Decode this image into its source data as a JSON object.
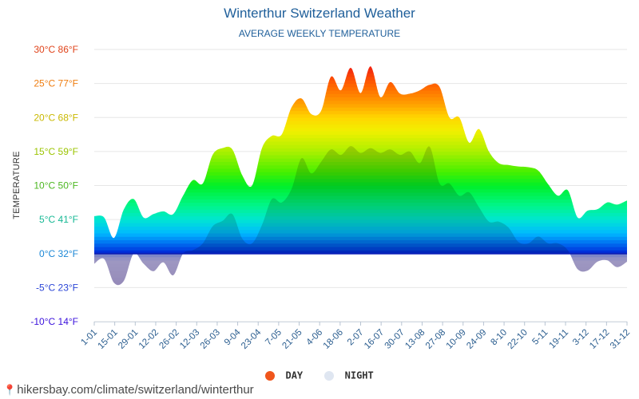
{
  "chart_data": {
    "type": "area",
    "title": "Winterthur Switzerland Weather",
    "subtitle": "AVERAGE WEEKLY TEMPERATURE",
    "ylabel": "TEMPERATURE",
    "ylim": [
      -10,
      30
    ],
    "y_ticks": [
      {
        "value": 30,
        "label": "30°C 86°F",
        "color": "#e0431a"
      },
      {
        "value": 25,
        "label": "25°C 77°F",
        "color": "#ef7d10"
      },
      {
        "value": 20,
        "label": "20°C 68°F",
        "color": "#c9b800"
      },
      {
        "value": 15,
        "label": "15°C 59°F",
        "color": "#9bc400"
      },
      {
        "value": 10,
        "label": "10°C 50°F",
        "color": "#4cb720"
      },
      {
        "value": 5,
        "label": "5°C 41°F",
        "color": "#16b894"
      },
      {
        "value": 0,
        "label": "0°C 32°F",
        "color": "#1b87d6"
      },
      {
        "value": -5,
        "label": "-5°C 23°F",
        "color": "#2a45d6"
      },
      {
        "value": -10,
        "label": "-10°C 14°F",
        "color": "#3a10dc"
      }
    ],
    "x_tick_labels": [
      "1-01",
      "15-01",
      "29-01",
      "12-02",
      "26-02",
      "12-03",
      "26-03",
      "9-04",
      "23-04",
      "7-05",
      "21-05",
      "4-06",
      "18-06",
      "2-07",
      "16-07",
      "30-07",
      "13-08",
      "27-08",
      "10-09",
      "24-09",
      "8-10",
      "22-10",
      "5-11",
      "19-11",
      "3-12",
      "17-12",
      "31-12"
    ],
    "series": [
      {
        "name": "DAY",
        "values": [
          5.5,
          5.3,
          2.3,
          6.5,
          8,
          5.3,
          5.8,
          6.2,
          5.8,
          8.5,
          10.8,
          10.3,
          14.5,
          15.5,
          15.3,
          11.5,
          10,
          15.5,
          17.3,
          17.5,
          21.5,
          22.8,
          20.5,
          21,
          26,
          24,
          27.3,
          23.6,
          27.5,
          23,
          25.2,
          23.5,
          23.5,
          24,
          24.8,
          24.5,
          20,
          20,
          16.3,
          18.3,
          15,
          13.3,
          13,
          12.8,
          12.7,
          12.2,
          10.2,
          8.5,
          9.3,
          5.3,
          6.3,
          6.5,
          7.5,
          7.2,
          7.8
        ]
      },
      {
        "name": "NIGHT",
        "values": [
          -1.5,
          -0.8,
          -4.3,
          -4,
          0,
          -1.5,
          -2.6,
          -1.3,
          -3.2,
          0,
          0.5,
          1.5,
          4,
          4.8,
          5.8,
          2.2,
          1.5,
          4.2,
          8,
          7.5,
          9.5,
          14,
          11.8,
          13.5,
          15.3,
          14.5,
          15.8,
          14.8,
          15.5,
          14.8,
          15.3,
          14.5,
          15,
          13.3,
          15.7,
          10.3,
          10.3,
          8.5,
          9,
          6.8,
          4.7,
          4.7,
          3.8,
          1.7,
          1.5,
          2.5,
          1.5,
          1.5,
          0.5,
          -2.3,
          -2.5,
          -1.2,
          -1,
          -2,
          -1.2
        ]
      }
    ],
    "legend": [
      {
        "label": "DAY",
        "color": "#f0561c"
      },
      {
        "label": "NIGHT",
        "color": "#dfe6f1"
      }
    ]
  },
  "footer": {
    "url": "hikersbay.com/climate/switzerland/winterthur"
  }
}
